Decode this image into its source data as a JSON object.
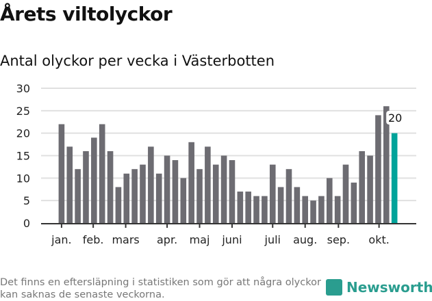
{
  "title": "Årets viltolyckor",
  "subtitle": "Antal olyckor per vecka i Västerbotten",
  "footnote": "Det finns en eftersläpning i statistiken som gör att några olyckor kan saknas de senaste veckorna.",
  "brand": "Newsworthy",
  "colors": {
    "bar": "#6d6c72",
    "highlight": "#00a39a",
    "grid": "#e0e0e0",
    "axis": "#333333"
  },
  "chart_data": {
    "type": "bar",
    "title": "Antal olyckor per vecka i Västerbotten",
    "xlabel": "",
    "ylabel": "",
    "ylim": [
      0,
      30
    ],
    "yticks": [
      0,
      5,
      10,
      15,
      20,
      25,
      30
    ],
    "weeks": [
      1,
      2,
      3,
      4,
      5,
      6,
      7,
      8,
      9,
      10,
      11,
      12,
      13,
      14,
      15,
      16,
      17,
      18,
      19,
      20,
      21,
      22,
      23,
      24,
      25,
      26,
      27,
      28,
      29,
      30,
      31,
      32,
      33,
      34,
      35,
      36,
      37,
      38,
      39,
      40,
      41,
      42
    ],
    "values": [
      22,
      17,
      12,
      16,
      19,
      22,
      16,
      8,
      11,
      12,
      13,
      17,
      11,
      15,
      14,
      10,
      18,
      12,
      17,
      13,
      15,
      14,
      7,
      7,
      6,
      6,
      13,
      8,
      12,
      8,
      6,
      5,
      6,
      10,
      6,
      13,
      9,
      16,
      15,
      24,
      26,
      20
    ],
    "highlight_index": 41,
    "annotation": "20",
    "month_ticks": [
      {
        "label": "jan.",
        "week": 1
      },
      {
        "label": "feb.",
        "week": 4.9
      },
      {
        "label": "mars",
        "week": 8.9
      },
      {
        "label": "apr.",
        "week": 14
      },
      {
        "label": "maj",
        "week": 18
      },
      {
        "label": "juni",
        "week": 22
      },
      {
        "label": "juli",
        "week": 27
      },
      {
        "label": "aug.",
        "week": 31
      },
      {
        "label": "sep.",
        "week": 35.1
      },
      {
        "label": "okt.",
        "week": 40.1
      }
    ],
    "grid": true
  }
}
